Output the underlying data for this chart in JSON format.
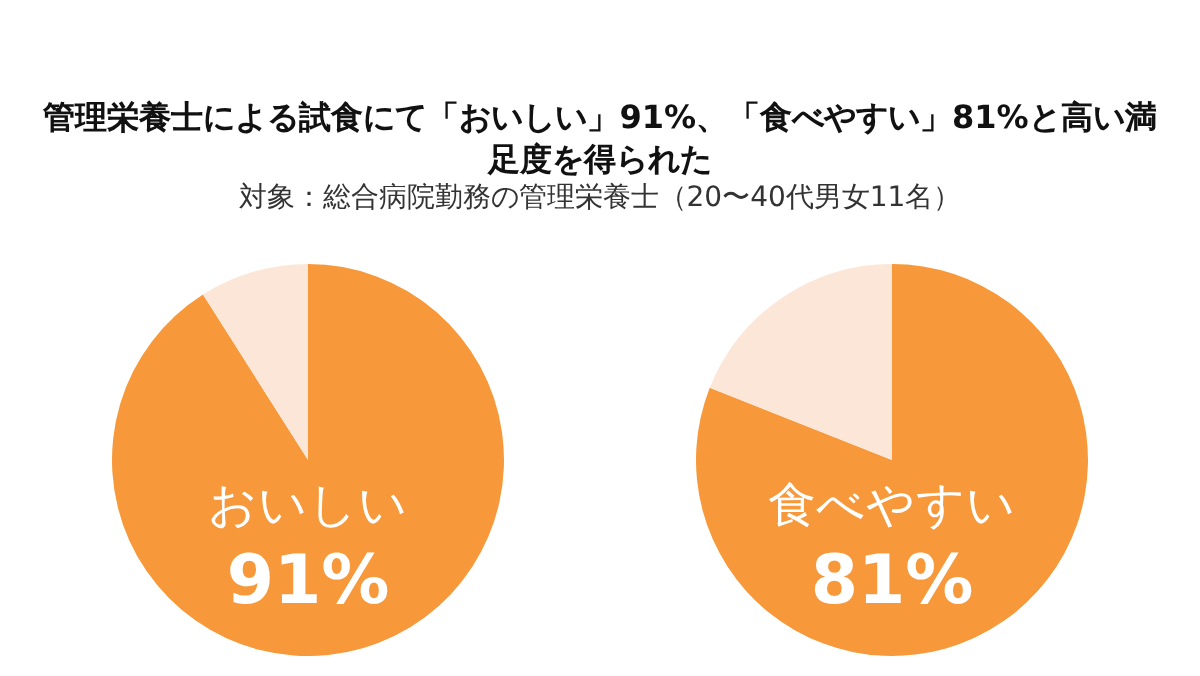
{
  "chart_data": [
    {
      "type": "pie",
      "title": "管理栄養士による試食にて「おいしい」91%、「食べやすい」81%と高い満足度を得られた",
      "subtitle": "対象：総合病院勤務の管理栄養士（20〜40代男女11名）",
      "categories": [
        "おいしい",
        null
      ],
      "values": [
        91,
        9
      ],
      "colors": [
        "#f7993a",
        "#fce6d7"
      ],
      "value_labels": [
        "91%",
        null
      ],
      "legend": false
    },
    {
      "type": "pie",
      "categories": [
        "食べやすい",
        null
      ],
      "values": [
        81,
        19
      ],
      "colors": [
        "#f7993a",
        "#fce6d7"
      ],
      "value_labels": [
        "81%",
        null
      ],
      "legend": false
    }
  ]
}
